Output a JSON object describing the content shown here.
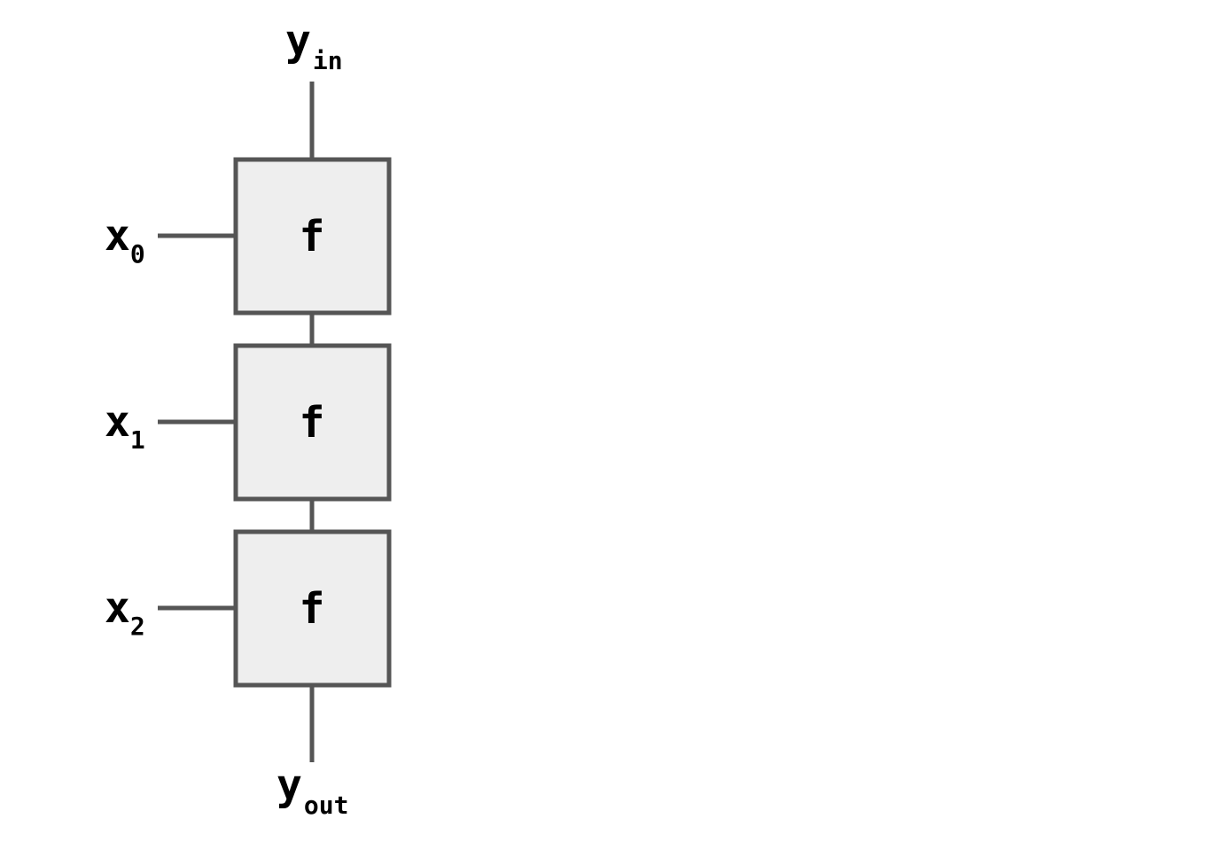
{
  "diagram": {
    "top_output": {
      "base": "y",
      "sub": "in"
    },
    "bottom_output": {
      "base": "y",
      "sub": "out"
    },
    "inputs": [
      {
        "base": "x",
        "sub": "0"
      },
      {
        "base": "x",
        "sub": "1"
      },
      {
        "base": "x",
        "sub": "2"
      }
    ],
    "blocks": [
      {
        "label": "f"
      },
      {
        "label": "f"
      },
      {
        "label": "f"
      }
    ],
    "colors": {
      "stroke": "#555555",
      "box_fill": "#eeeeee",
      "text": "#000000"
    }
  }
}
